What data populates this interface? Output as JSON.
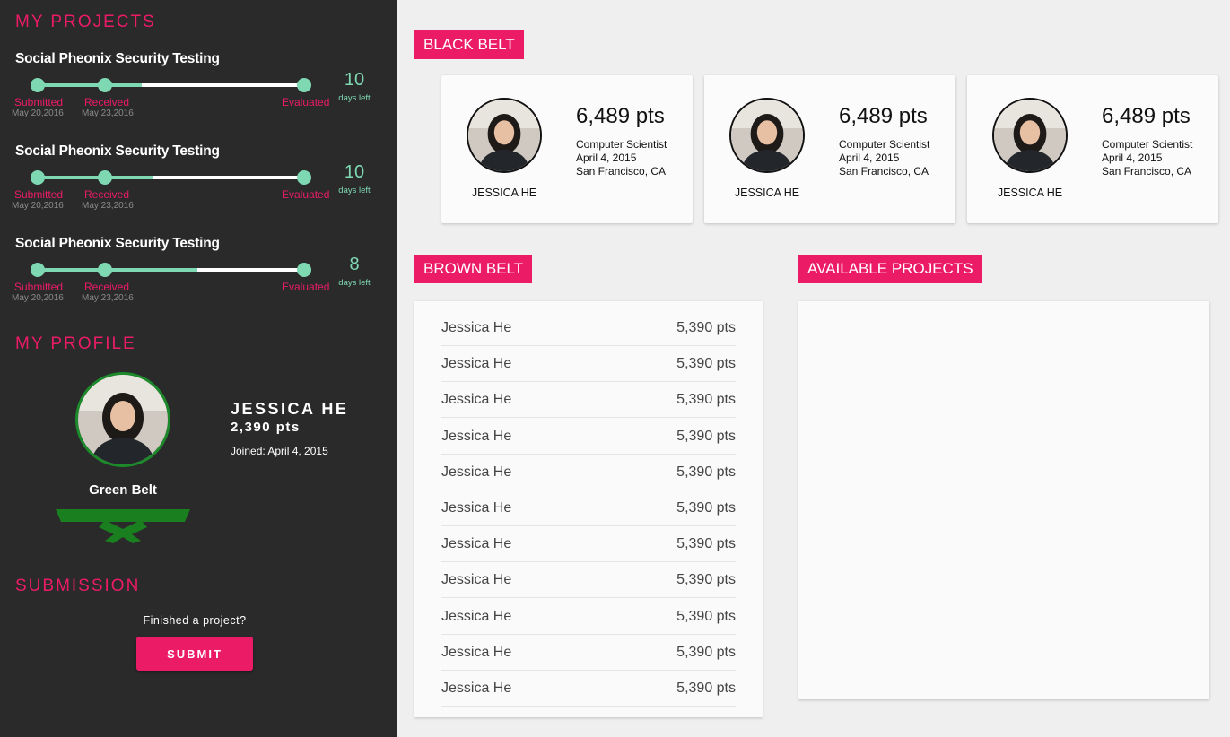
{
  "sidebar": {
    "my_projects_heading": "MY PROJECTS",
    "projects": [
      {
        "title": "Social Pheonix Security Testing",
        "progress": 0.39,
        "stages": [
          {
            "label": "Submitted",
            "date": "May 20,2016"
          },
          {
            "label": "Received",
            "date": "May 23,2016"
          },
          {
            "label": "Evaluated",
            "date": ""
          }
        ],
        "days_left_value": "10",
        "days_left_label": "days left"
      },
      {
        "title": "Social Pheonix Security Testing",
        "progress": 0.43,
        "stages": [
          {
            "label": "Submitted",
            "date": "May 20,2016"
          },
          {
            "label": "Received",
            "date": "May 23,2016"
          },
          {
            "label": "Evaluated",
            "date": ""
          }
        ],
        "days_left_value": "10",
        "days_left_label": "days left"
      },
      {
        "title": "Social Pheonix Security Testing",
        "progress": 0.6,
        "stages": [
          {
            "label": "Submitted",
            "date": "May 20,2016"
          },
          {
            "label": "Received",
            "date": "May 23,2016"
          },
          {
            "label": "Evaluated",
            "date": ""
          }
        ],
        "days_left_value": "8",
        "days_left_label": "days left"
      }
    ],
    "my_profile_heading": "MY PROFILE",
    "profile": {
      "name": "JESSICA HE",
      "points": "2,390 pts",
      "joined": "Joined: April 4, 2015",
      "belt_name": "Green Belt",
      "belt_color": "#1a7f1e"
    },
    "submission_heading": "SUBMISSION",
    "submission_prompt": "Finished a project?",
    "submit_label": "SUBMIT"
  },
  "main": {
    "black_belt_heading": "BLACK BELT",
    "black_belt_cards": [
      {
        "name": "JESSICA HE",
        "points": "6,489 pts",
        "title": "Computer Scientist",
        "date": "April 4, 2015",
        "location": "San Francisco, CA"
      },
      {
        "name": "JESSICA HE",
        "points": "6,489 pts",
        "title": "Computer Scientist",
        "date": "April 4, 2015",
        "location": "San Francisco, CA"
      },
      {
        "name": "JESSICA HE",
        "points": "6,489 pts",
        "title": "Computer Scientist",
        "date": "April 4, 2015",
        "location": "San Francisco, CA"
      }
    ],
    "brown_belt_heading": "BROWN BELT",
    "brown_belt_list": [
      {
        "name": "Jessica He",
        "points": "5,390 pts"
      },
      {
        "name": "Jessica He",
        "points": "5,390 pts"
      },
      {
        "name": "Jessica He",
        "points": "5,390 pts"
      },
      {
        "name": "Jessica He",
        "points": "5,390 pts"
      },
      {
        "name": "Jessica He",
        "points": "5,390 pts"
      },
      {
        "name": "Jessica He",
        "points": "5,390 pts"
      },
      {
        "name": "Jessica He",
        "points": "5,390 pts"
      },
      {
        "name": "Jessica He",
        "points": "5,390 pts"
      },
      {
        "name": "Jessica He",
        "points": "5,390 pts"
      },
      {
        "name": "Jessica He",
        "points": "5,390 pts"
      },
      {
        "name": "Jessica He",
        "points": "5,390 pts"
      }
    ],
    "available_projects_heading": "AVAILABLE PROJECTS"
  },
  "colors": {
    "accent": "#ec1b66",
    "progress": "#7ed9b3",
    "sidebar_bg": "#2a2a2b"
  }
}
